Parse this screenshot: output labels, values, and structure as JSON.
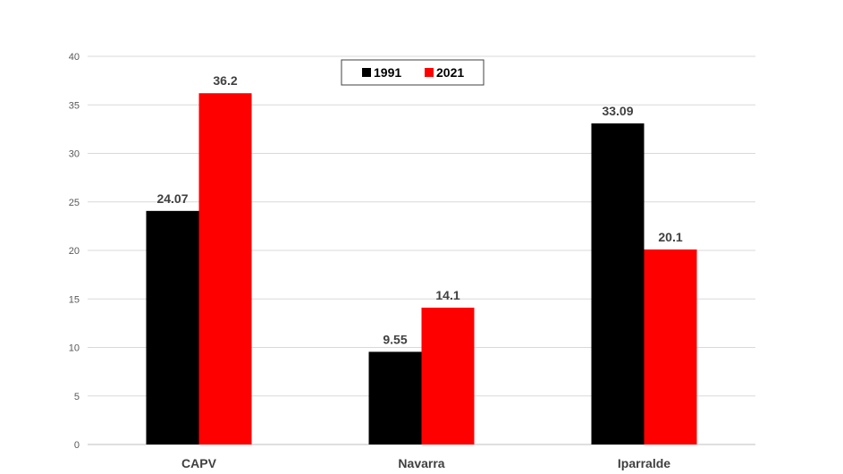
{
  "chart_data": {
    "type": "bar",
    "title": "",
    "xlabel": "",
    "ylabel": "",
    "categories": [
      "CAPV",
      "Navarra",
      "Iparralde"
    ],
    "series": [
      {
        "name": "1991",
        "color": "#000000",
        "values": [
          24.07,
          9.55,
          33.09
        ],
        "labels": [
          "24.07",
          "9.55",
          "33.09"
        ]
      },
      {
        "name": "2021",
        "color": "#ff0000",
        "values": [
          36.2,
          14.1,
          20.1
        ],
        "labels": [
          "36.2",
          "14.1",
          "20.1"
        ]
      }
    ],
    "ylim": [
      0,
      40
    ],
    "yticks": [
      "0",
      "5",
      "10",
      "15",
      "20",
      "25",
      "30",
      "35",
      "40"
    ],
    "grid": true,
    "legend_position": "top-center"
  }
}
